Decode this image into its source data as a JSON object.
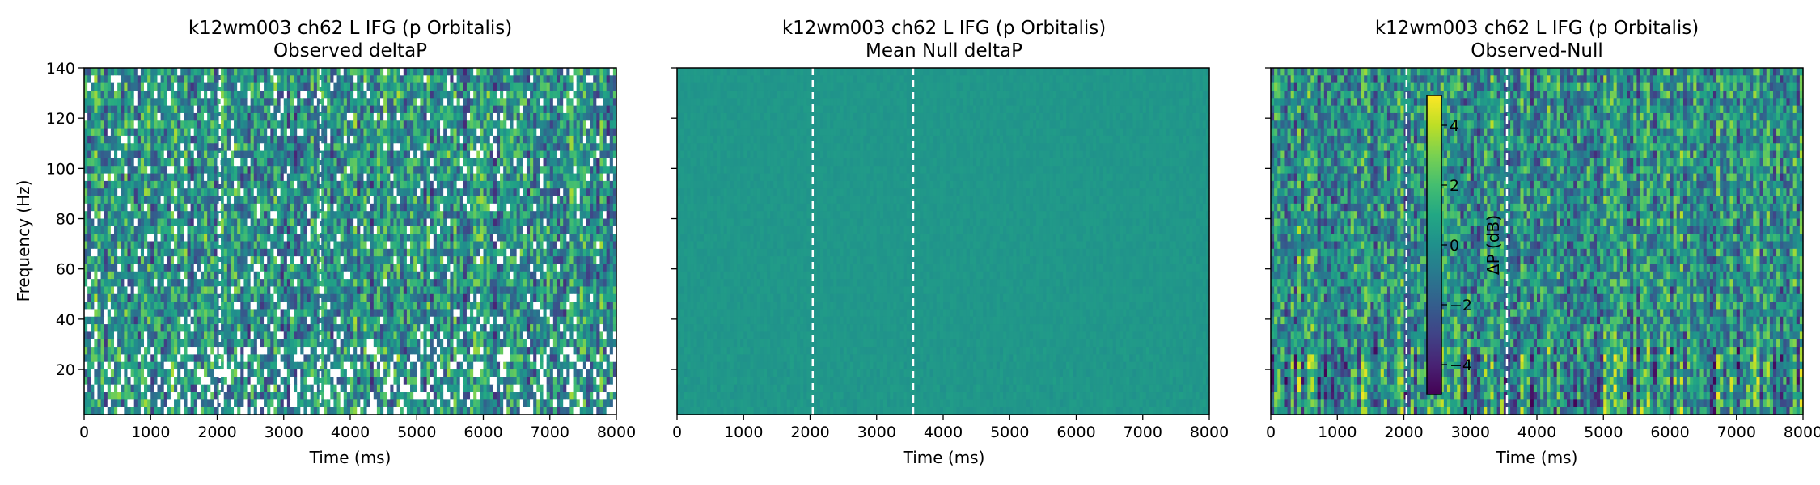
{
  "chart_data": [
    {
      "type": "heatmap",
      "title_line1": "k12wm003 ch62 L IFG (p Orbitalis)",
      "title_line2": "Observed deltaP",
      "xlabel": "Time (ms)",
      "ylabel": "Frequency (Hz)",
      "xlim": [
        0,
        8000
      ],
      "ylim": [
        2,
        140
      ],
      "xticks": [
        "0",
        "1000",
        "2000",
        "3000",
        "4000",
        "5000",
        "6000",
        "7000",
        "8000"
      ],
      "yticks": [
        "20",
        "40",
        "60",
        "80",
        "100",
        "120",
        "140"
      ],
      "vlines_ms": [
        2040,
        3550
      ],
      "texture": "noisy with masked white gaps",
      "colormap": "viridis"
    },
    {
      "type": "heatmap",
      "title_line1": "k12wm003 ch62 L IFG (p Orbitalis)",
      "title_line2": "Mean Null deltaP",
      "xlabel": "Time (ms)",
      "ylabel": "",
      "xlim": [
        0,
        8000
      ],
      "ylim": [
        2,
        140
      ],
      "xticks": [
        "0",
        "1000",
        "2000",
        "3000",
        "4000",
        "5000",
        "6000",
        "7000",
        "8000"
      ],
      "yticks": [],
      "vlines_ms": [
        2040,
        3550
      ],
      "texture": "smooth near zero",
      "colormap": "viridis"
    },
    {
      "type": "heatmap",
      "title_line1": "k12wm003 ch62 L IFG (p Orbitalis)",
      "title_line2": "Observed-Null",
      "xlabel": "Time (ms)",
      "ylabel": "",
      "xlim": [
        0,
        8000
      ],
      "ylim": [
        2,
        140
      ],
      "xticks": [
        "0",
        "1000",
        "2000",
        "3000",
        "4000",
        "5000",
        "6000",
        "7000",
        "8000"
      ],
      "yticks": [],
      "vlines_ms": [
        2040,
        3550
      ],
      "texture": "noisy smooth",
      "colormap": "viridis",
      "colorbar": {
        "label": "ΔP (dB)",
        "range": [
          -5,
          5
        ],
        "ticks": [
          "−4",
          "−2",
          "0",
          "2",
          "4"
        ]
      }
    }
  ]
}
